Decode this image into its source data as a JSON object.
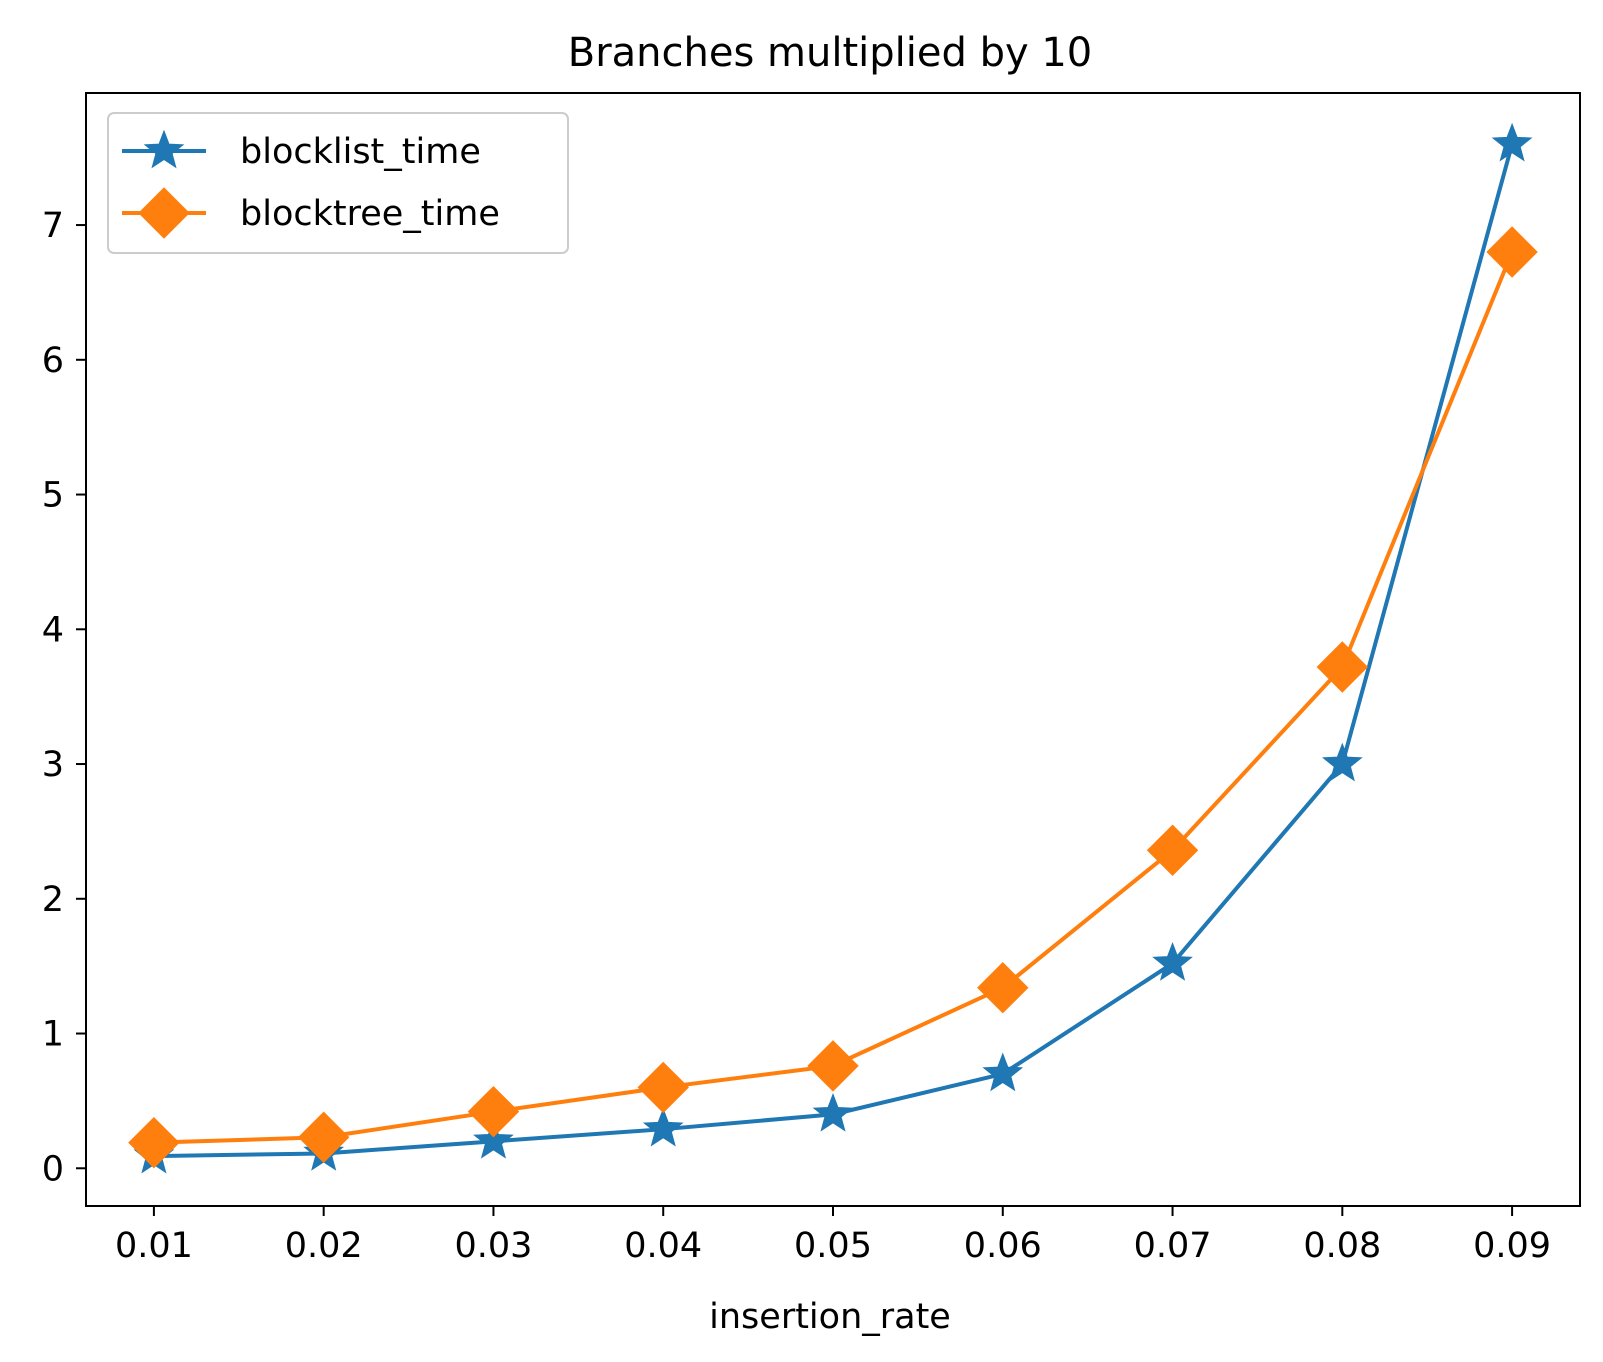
{
  "chart_data": {
    "type": "line",
    "title": "Branches multiplied by 10",
    "xlabel": "insertion_rate",
    "ylabel": "",
    "x": [
      0.01,
      0.02,
      0.03,
      0.04,
      0.05,
      0.06,
      0.07,
      0.08,
      0.09
    ],
    "x_tick_labels": [
      "0.01",
      "0.02",
      "0.03",
      "0.04",
      "0.05",
      "0.06",
      "0.07",
      "0.08",
      "0.09"
    ],
    "y_ticks": [
      0,
      1,
      2,
      3,
      4,
      5,
      6,
      7
    ],
    "y_tick_labels": [
      "0",
      "1",
      "2",
      "3",
      "4",
      "5",
      "6",
      "7"
    ],
    "xlim": [
      0.006,
      0.094
    ],
    "ylim": [
      -0.28,
      7.98
    ],
    "grid": false,
    "legend_position": "top-left",
    "series": [
      {
        "name": "blocklist_time",
        "color": "#1f77b4",
        "marker": "star",
        "values": [
          0.09,
          0.11,
          0.2,
          0.29,
          0.4,
          0.7,
          1.52,
          3.0,
          7.6
        ]
      },
      {
        "name": "blocktree_time",
        "color": "#ff7f0e",
        "marker": "diamond",
        "values": [
          0.19,
          0.23,
          0.42,
          0.6,
          0.76,
          1.34,
          2.36,
          3.72,
          6.8
        ]
      }
    ]
  }
}
